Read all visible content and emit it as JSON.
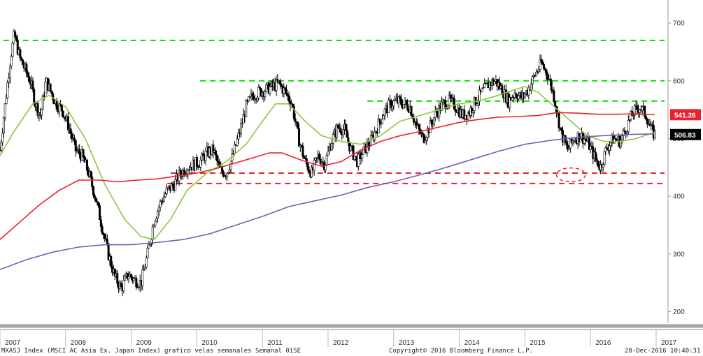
{
  "chart_data": {
    "type": "candlestick",
    "frequency": "weekly",
    "ylim": [
      180,
      740
    ],
    "yticks": [
      200,
      300,
      400,
      500,
      600,
      700
    ],
    "year_labels": [
      "2007",
      "2008",
      "2009",
      "2010",
      "2011",
      "2012",
      "2013",
      "2014",
      "2015",
      "2016",
      "2017"
    ],
    "x_range": [
      2007.0,
      2017.0
    ],
    "last_price_labels": [
      {
        "value": "541.26",
        "color": "#e8232f"
      },
      {
        "value": "506.83",
        "color": "#000000"
      }
    ],
    "close_path": [
      [
        2007.0,
        480
      ],
      [
        2007.08,
        560
      ],
      [
        2007.16,
        640
      ],
      [
        2007.22,
        680
      ],
      [
        2007.3,
        640
      ],
      [
        2007.38,
        620
      ],
      [
        2007.46,
        600
      ],
      [
        2007.54,
        560
      ],
      [
        2007.62,
        540
      ],
      [
        2007.7,
        600
      ],
      [
        2007.78,
        580
      ],
      [
        2007.86,
        560
      ],
      [
        2007.95,
        550
      ],
      [
        2008.05,
        520
      ],
      [
        2008.15,
        480
      ],
      [
        2008.25,
        470
      ],
      [
        2008.35,
        440
      ],
      [
        2008.45,
        400
      ],
      [
        2008.55,
        350
      ],
      [
        2008.65,
        300
      ],
      [
        2008.75,
        260
      ],
      [
        2008.85,
        240
      ],
      [
        2008.95,
        265
      ],
      [
        2009.05,
        255
      ],
      [
        2009.15,
        250
      ],
      [
        2009.25,
        300
      ],
      [
        2009.35,
        360
      ],
      [
        2009.45,
        390
      ],
      [
        2009.55,
        410
      ],
      [
        2009.65,
        420
      ],
      [
        2009.75,
        440
      ],
      [
        2009.85,
        450
      ],
      [
        2009.95,
        455
      ],
      [
        2010.05,
        460
      ],
      [
        2010.15,
        475
      ],
      [
        2010.25,
        480
      ],
      [
        2010.35,
        445
      ],
      [
        2010.45,
        440
      ],
      [
        2010.55,
        470
      ],
      [
        2010.65,
        510
      ],
      [
        2010.75,
        555
      ],
      [
        2010.85,
        575
      ],
      [
        2010.95,
        580
      ],
      [
        2011.05,
        585
      ],
      [
        2011.15,
        590
      ],
      [
        2011.25,
        595
      ],
      [
        2011.35,
        580
      ],
      [
        2011.45,
        560
      ],
      [
        2011.55,
        500
      ],
      [
        2011.65,
        460
      ],
      [
        2011.75,
        440
      ],
      [
        2011.85,
        470
      ],
      [
        2011.95,
        455
      ],
      [
        2012.05,
        495
      ],
      [
        2012.15,
        520
      ],
      [
        2012.25,
        515
      ],
      [
        2012.35,
        480
      ],
      [
        2012.45,
        460
      ],
      [
        2012.55,
        480
      ],
      [
        2012.65,
        495
      ],
      [
        2012.75,
        520
      ],
      [
        2012.85,
        545
      ],
      [
        2012.95,
        560
      ],
      [
        2013.05,
        565
      ],
      [
        2013.15,
        560
      ],
      [
        2013.25,
        555
      ],
      [
        2013.35,
        520
      ],
      [
        2013.45,
        500
      ],
      [
        2013.55,
        520
      ],
      [
        2013.65,
        545
      ],
      [
        2013.75,
        560
      ],
      [
        2013.85,
        565
      ],
      [
        2013.95,
        555
      ],
      [
        2014.05,
        540
      ],
      [
        2014.15,
        545
      ],
      [
        2014.25,
        565
      ],
      [
        2014.35,
        580
      ],
      [
        2014.45,
        595
      ],
      [
        2014.55,
        600
      ],
      [
        2014.65,
        585
      ],
      [
        2014.75,
        565
      ],
      [
        2014.85,
        580
      ],
      [
        2014.95,
        570
      ],
      [
        2015.05,
        585
      ],
      [
        2015.15,
        610
      ],
      [
        2015.25,
        630
      ],
      [
        2015.35,
        610
      ],
      [
        2015.45,
        570
      ],
      [
        2015.55,
        510
      ],
      [
        2015.65,
        480
      ],
      [
        2015.75,
        500
      ],
      [
        2015.85,
        505
      ],
      [
        2015.95,
        495
      ],
      [
        2016.05,
        470
      ],
      [
        2016.15,
        450
      ],
      [
        2016.25,
        485
      ],
      [
        2016.35,
        500
      ],
      [
        2016.45,
        495
      ],
      [
        2016.55,
        520
      ],
      [
        2016.65,
        545
      ],
      [
        2016.75,
        555
      ],
      [
        2016.85,
        540
      ],
      [
        2016.92,
        515
      ],
      [
        2016.98,
        507
      ]
    ],
    "moving_averages": [
      {
        "color": "#8dc63f",
        "points": [
          [
            2007.0,
            470
          ],
          [
            2007.2,
            510
          ],
          [
            2007.5,
            560
          ],
          [
            2007.75,
            575
          ],
          [
            2008.0,
            555
          ],
          [
            2008.3,
            500
          ],
          [
            2008.6,
            420
          ],
          [
            2008.9,
            360
          ],
          [
            2009.15,
            330
          ],
          [
            2009.35,
            325
          ],
          [
            2009.6,
            360
          ],
          [
            2009.85,
            410
          ],
          [
            2010.15,
            440
          ],
          [
            2010.45,
            460
          ],
          [
            2010.75,
            490
          ],
          [
            2011.0,
            530
          ],
          [
            2011.2,
            560
          ],
          [
            2011.4,
            560
          ],
          [
            2011.65,
            530
          ],
          [
            2011.9,
            505
          ],
          [
            2012.2,
            495
          ],
          [
            2012.5,
            490
          ],
          [
            2012.8,
            505
          ],
          [
            2013.1,
            530
          ],
          [
            2013.4,
            540
          ],
          [
            2013.7,
            550
          ],
          [
            2014.0,
            560
          ],
          [
            2014.3,
            565
          ],
          [
            2014.6,
            575
          ],
          [
            2014.85,
            585
          ],
          [
            2015.0,
            590
          ],
          [
            2015.2,
            580
          ],
          [
            2015.45,
            555
          ],
          [
            2015.7,
            530
          ],
          [
            2015.95,
            505
          ],
          [
            2016.2,
            495
          ],
          [
            2016.45,
            495
          ],
          [
            2016.7,
            500
          ],
          [
            2016.85,
            506
          ],
          [
            2016.98,
            510
          ]
        ]
      },
      {
        "color": "#e8232f",
        "points": [
          [
            2007.0,
            325
          ],
          [
            2007.3,
            355
          ],
          [
            2007.6,
            385
          ],
          [
            2007.9,
            410
          ],
          [
            2008.2,
            428
          ],
          [
            2008.5,
            428
          ],
          [
            2008.8,
            425
          ],
          [
            2009.1,
            428
          ],
          [
            2009.4,
            430
          ],
          [
            2009.7,
            435
          ],
          [
            2010.0,
            440
          ],
          [
            2010.3,
            448
          ],
          [
            2010.6,
            458
          ],
          [
            2010.9,
            468
          ],
          [
            2011.1,
            475
          ],
          [
            2011.3,
            475
          ],
          [
            2011.6,
            462
          ],
          [
            2011.9,
            452
          ],
          [
            2012.2,
            460
          ],
          [
            2012.5,
            480
          ],
          [
            2012.8,
            495
          ],
          [
            2013.1,
            505
          ],
          [
            2013.4,
            512
          ],
          [
            2013.7,
            520
          ],
          [
            2014.0,
            528
          ],
          [
            2014.3,
            533
          ],
          [
            2014.6,
            537
          ],
          [
            2014.9,
            538
          ],
          [
            2015.2,
            540
          ],
          [
            2015.5,
            545
          ],
          [
            2015.8,
            544
          ],
          [
            2016.1,
            542
          ],
          [
            2016.4,
            542
          ],
          [
            2016.7,
            543
          ],
          [
            2016.98,
            541
          ]
        ]
      },
      {
        "color": "#7b5cb4",
        "points": [
          [
            2007.0,
            273
          ],
          [
            2007.4,
            290
          ],
          [
            2007.8,
            303
          ],
          [
            2008.2,
            312
          ],
          [
            2008.6,
            316
          ],
          [
            2009.0,
            316
          ],
          [
            2009.4,
            320
          ],
          [
            2009.8,
            325
          ],
          [
            2010.2,
            335
          ],
          [
            2010.6,
            350
          ],
          [
            2011.0,
            365
          ],
          [
            2011.4,
            382
          ],
          [
            2011.8,
            392
          ],
          [
            2012.2,
            402
          ],
          [
            2012.6,
            415
          ],
          [
            2013.0,
            425
          ],
          [
            2013.4,
            437
          ],
          [
            2013.8,
            450
          ],
          [
            2014.2,
            464
          ],
          [
            2014.6,
            478
          ],
          [
            2015.0,
            490
          ],
          [
            2015.4,
            497
          ],
          [
            2015.8,
            502
          ],
          [
            2016.2,
            505
          ],
          [
            2016.6,
            507
          ],
          [
            2016.98,
            508
          ]
        ]
      }
    ],
    "horizontal_levels": [
      {
        "value": 670,
        "color": "#00e000",
        "x_start": 2007.05
      },
      {
        "value": 600,
        "color": "#00e000",
        "x_start": 2010.05
      },
      {
        "value": 565,
        "color": "#00e000",
        "x_start": 2012.6
      },
      {
        "value": 440,
        "color": "#e8232f",
        "x_start": 2009.6
      },
      {
        "value": 422,
        "color": "#e8232f",
        "x_start": 2009.55
      }
    ],
    "annotation_ellipse": {
      "x_center": 2015.7,
      "y_center": 437,
      "x_radius": 0.22,
      "y_radius": 12,
      "color": "#e8232f"
    }
  },
  "footer": {
    "left": "MXASJ Index (MSCI AC Asia Ex. Japan Index) grafico velas semanales  Semanal 01SE",
    "middle": "Copyright© 2016 Bloomberg Finance L.P.",
    "right": "28-Dec-2016 10:40:31"
  }
}
